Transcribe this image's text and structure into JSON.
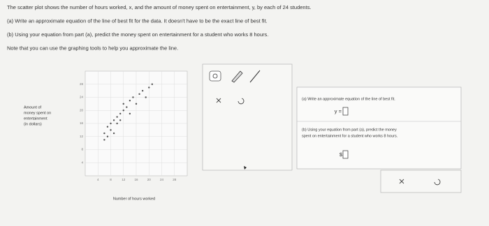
{
  "question": {
    "lines": [
      "The scatter plot shows the number of hours worked, x, and the amount of money spent on entertainment, y, by each of 24 students.",
      "(a) Write an approximate equation of the line of best fit for the data. It doesn't have to be the exact line of best fit.",
      "(b) Using your equation from part (a), predict the money spent on entertainment for a student who works 8 hours.",
      "Note that you can use the graphing tools to help you approximate the line."
    ]
  },
  "chart_data": {
    "type": "scatter",
    "y_label": [
      "Amount of",
      "money spent on",
      "entertainment",
      "(in dollars)"
    ],
    "x_label": "Number of hours worked",
    "x": [
      6,
      6,
      7,
      7,
      8,
      8,
      9,
      9,
      10,
      10,
      11,
      11,
      12,
      12,
      13,
      14,
      14,
      15,
      16,
      17,
      18,
      19,
      20,
      21
    ],
    "y": [
      11,
      13,
      12,
      15,
      14,
      16,
      13,
      17,
      18,
      16,
      19,
      17,
      20,
      22,
      21,
      23,
      19,
      24,
      22,
      25,
      26,
      24,
      27,
      28
    ],
    "xlim": [
      0,
      32
    ],
    "ylim": [
      0,
      32
    ],
    "xticks": [
      4,
      8,
      12,
      16,
      20,
      24,
      28
    ],
    "yticks": [
      4,
      8,
      12,
      16,
      20,
      24,
      28
    ],
    "grid": true,
    "color": "#555555"
  },
  "answer_panel": {
    "part_a": "(a) Write an approximate equation of the line of best fit.",
    "equation_prefix": "y =",
    "part_b": [
      "(b) Using your equation from part (a), predict the money",
      "spent on entertainment for a student who works 8 hours."
    ],
    "money_prefix": "$"
  }
}
